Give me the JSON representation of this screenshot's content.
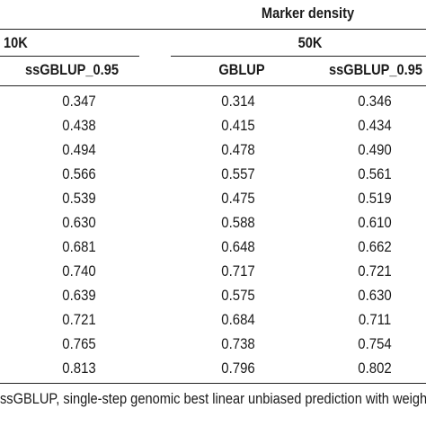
{
  "table": {
    "spanner": "Marker density",
    "groups": [
      "10K",
      "50K"
    ],
    "columns": [
      "ssGBLUP_0.95",
      "GBLUP",
      "ssGBLUP_0.95"
    ],
    "rows": [
      [
        "0.347",
        "0.314",
        "0.346"
      ],
      [
        "0.438",
        "0.415",
        "0.434"
      ],
      [
        "0.494",
        "0.478",
        "0.490"
      ],
      [
        "0.566",
        "0.557",
        "0.561"
      ],
      [
        "0.539",
        "0.475",
        "0.519"
      ],
      [
        "0.630",
        "0.588",
        "0.610"
      ],
      [
        "0.681",
        "0.648",
        "0.662"
      ],
      [
        "0.740",
        "0.717",
        "0.721"
      ],
      [
        "0.639",
        "0.575",
        "0.630"
      ],
      [
        "0.721",
        "0.684",
        "0.711"
      ],
      [
        "0.765",
        "0.738",
        "0.754"
      ],
      [
        "0.813",
        "0.796",
        "0.802"
      ]
    ]
  },
  "footnote": "ssGBLUP, single-step genomic best linear unbiased prediction with weigh"
}
